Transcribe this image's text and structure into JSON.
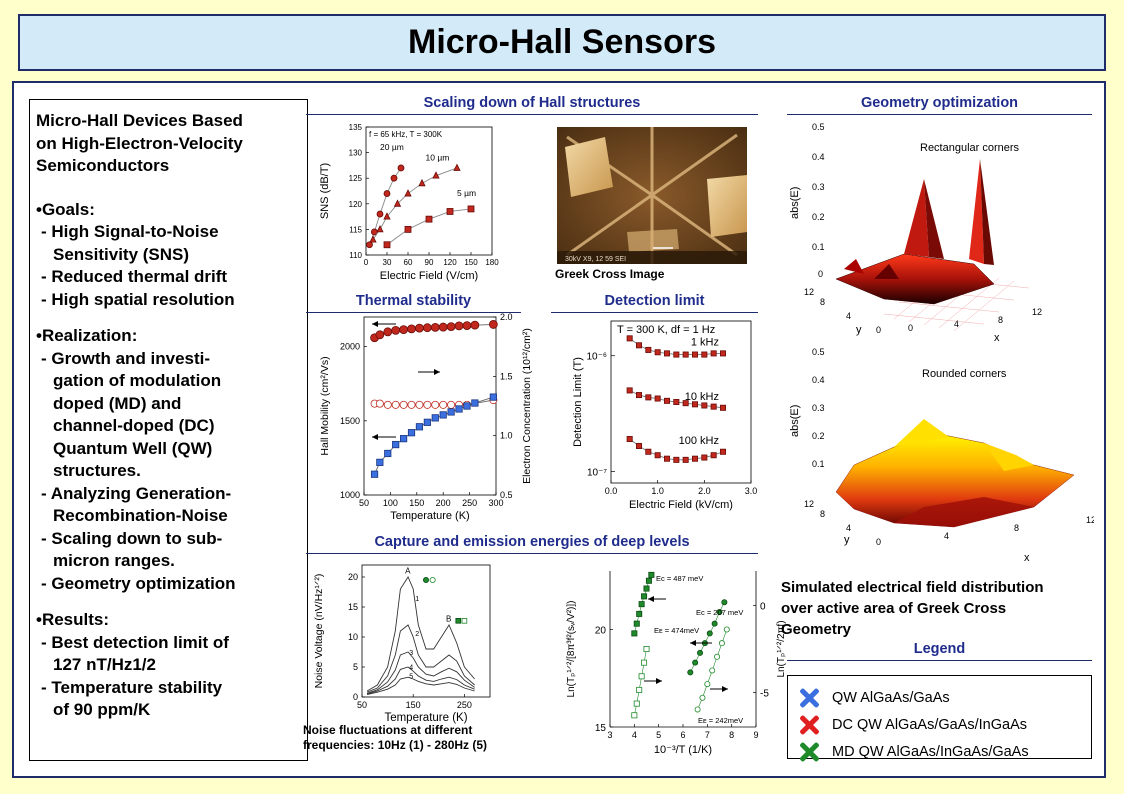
{
  "title": "Micro-Hall Sensors",
  "left": {
    "heading": [
      "Micro-Hall Devices Based",
      "on High-Electron-Velocity",
      "Semiconductors"
    ],
    "goals_title": "•Goals:",
    "goals": [
      [
        "- High Signal-to-Noise",
        "Sensitivity (SNS)"
      ],
      [
        "- Reduced thermal drift"
      ],
      [
        "- High spatial resolution"
      ]
    ],
    "realization_title": "•Realization:",
    "realization": [
      [
        "- Growth and investi-",
        "gation of modulation",
        "doped (MD) and",
        "channel-doped (DC)",
        "Quantum Well (QW)",
        "structures."
      ],
      [
        "- Analyzing Generation-",
        "Recombination-Noise"
      ],
      [
        "- Scaling down to sub-",
        "micron ranges."
      ],
      [
        "- Geometry optimization"
      ]
    ],
    "results_title": "•Results:",
    "results": [
      [
        "- Best detection limit of",
        "127 nT/Hz1/2"
      ],
      [
        "- Temperature stability",
        "of 90 ppm/K"
      ]
    ]
  },
  "sections": {
    "scaling": "Scaling down of Hall structures",
    "thermal": "Thermal stability",
    "detection": "Detection limit",
    "capture": "Capture and emission energies of deep levels",
    "geometry": "Geometry optimization",
    "legend": "Legend"
  },
  "captions": {
    "greek_cross": "Greek Cross Image",
    "noise": [
      "Noise fluctuations at different",
      "frequencies: 10Hz (1) - 280Hz (5)"
    ],
    "simulated": [
      "Simulated electrical field distribution",
      "over active area of Greek Cross",
      "Geometry"
    ]
  },
  "sem_image_text": "30kV  X9,   12 59 SEI",
  "legend": [
    {
      "label": "QW AlGaAs/GaAs",
      "color": "#3b6fe0"
    },
    {
      "label": "DC QW AlGaAs/GaAs/InGaAs",
      "color": "#e02020"
    },
    {
      "label": "MD QW AlGaAs/InGaAs/GaAs",
      "color": "#1e8a2a"
    }
  ],
  "chart_data": [
    {
      "type": "scatter",
      "name": "sns",
      "title": "f = 65 kHz, T = 300K",
      "xlabel": "Electric Field (V/cm)",
      "ylabel": "SNS (dB/T)",
      "xlim": [
        0,
        180
      ],
      "ylim": [
        110,
        135
      ],
      "xticks": [
        "0",
        "30",
        "60",
        "90",
        "120",
        "150",
        "180"
      ],
      "yticks": [
        "110",
        "115",
        "120",
        "125",
        "130",
        "135"
      ],
      "series": [
        {
          "name": "20 µm",
          "marker": "circle",
          "x": [
            5,
            12,
            20,
            30,
            40,
            50
          ],
          "y": [
            112,
            114.5,
            118,
            122,
            125,
            127
          ]
        },
        {
          "name": "10 µm",
          "marker": "triangle",
          "x": [
            10,
            20,
            30,
            45,
            60,
            80,
            100,
            130
          ],
          "y": [
            113,
            115,
            117.5,
            120,
            122,
            124,
            125.5,
            127
          ]
        },
        {
          "name": "5 µm",
          "marker": "square",
          "x": [
            30,
            60,
            90,
            120,
            150
          ],
          "y": [
            112,
            115,
            117,
            118.5,
            119
          ]
        }
      ]
    },
    {
      "type": "scatter",
      "name": "thermal",
      "xlabel": "Temperature (K)",
      "ylabel": "Hall Mobility (cm²/Vs)",
      "y2label": "Electron Concentration (10¹²/cm²)",
      "xlim": [
        50,
        300
      ],
      "ylim": [
        1000,
        2200
      ],
      "y2lim": [
        0.5,
        2.0
      ],
      "xticks": [
        "50",
        "100",
        "150",
        "200",
        "250",
        "300"
      ],
      "yticks": [
        "1000",
        "1500",
        "2000"
      ],
      "y2ticks": [
        "0.5",
        "1.0",
        "1.5",
        "2.0"
      ],
      "series": [
        {
          "name": "mobility_red",
          "x": [
            70,
            80,
            95,
            110,
            125,
            140,
            155,
            170,
            185,
            200,
            215,
            230,
            245,
            260,
            295
          ],
          "y": [
            2060,
            2080,
            2100,
            2110,
            2115,
            2120,
            2125,
            2128,
            2130,
            2132,
            2135,
            2140,
            2142,
            2145,
            2150
          ]
        },
        {
          "name": "concentration_open",
          "x": [
            70,
            80,
            95,
            110,
            125,
            140,
            155,
            170,
            185,
            200,
            215,
            230,
            245,
            295
          ],
          "y2": [
            1.27,
            1.27,
            1.26,
            1.26,
            1.26,
            1.26,
            1.26,
            1.26,
            1.26,
            1.26,
            1.26,
            1.26,
            1.26,
            1.3
          ]
        },
        {
          "name": "mobility_blue",
          "x": [
            70,
            80,
            95,
            110,
            125,
            140,
            155,
            170,
            185,
            200,
            215,
            230,
            245,
            260,
            295
          ],
          "y": [
            1140,
            1220,
            1280,
            1340,
            1380,
            1420,
            1460,
            1490,
            1520,
            1540,
            1560,
            1580,
            1600,
            1620,
            1660
          ]
        }
      ]
    },
    {
      "type": "scatter",
      "name": "detection",
      "title": "T = 300 K, df = 1 Hz",
      "xlabel": "Electric Field (kV/cm)",
      "ylabel": "Detection Limit (T)",
      "xlim": [
        0,
        3.0
      ],
      "ylim_log": [
        -7.1,
        -5.7
      ],
      "xticks": [
        "0.0",
        "1.0",
        "2.0",
        "3.0"
      ],
      "yticks": [
        "10⁻⁷",
        "10⁻⁶"
      ],
      "series": [
        {
          "name": "1 kHz",
          "x": [
            0.4,
            0.6,
            0.8,
            1.0,
            1.2,
            1.4,
            1.6,
            1.8,
            2.0,
            2.2,
            2.4
          ],
          "logy": [
            -5.85,
            -5.91,
            -5.95,
            -5.97,
            -5.98,
            -5.99,
            -5.99,
            -5.99,
            -5.99,
            -5.98,
            -5.98
          ]
        },
        {
          "name": "10 kHz",
          "x": [
            0.4,
            0.6,
            0.8,
            1.0,
            1.2,
            1.4,
            1.6,
            1.8,
            2.0,
            2.2,
            2.4
          ],
          "logy": [
            -6.3,
            -6.34,
            -6.36,
            -6.37,
            -6.39,
            -6.4,
            -6.41,
            -6.42,
            -6.43,
            -6.44,
            -6.45
          ]
        },
        {
          "name": "100 kHz",
          "x": [
            0.4,
            0.6,
            0.8,
            1.0,
            1.2,
            1.4,
            1.6,
            1.8,
            2.0,
            2.2,
            2.4
          ],
          "logy": [
            -6.72,
            -6.78,
            -6.83,
            -6.86,
            -6.89,
            -6.9,
            -6.9,
            -6.89,
            -6.88,
            -6.86,
            -6.83
          ]
        }
      ]
    },
    {
      "type": "line",
      "name": "noise",
      "xlabel": "Temperature (K)",
      "ylabel": "Noise Voltage (nV/Hz¹ᐟ²)",
      "xlim": [
        50,
        300
      ],
      "ylim": [
        0,
        22
      ],
      "xticks": [
        "50",
        "150",
        "250"
      ],
      "yticks": [
        "0",
        "5",
        "10",
        "15",
        "20"
      ],
      "labels": [
        "A",
        "B",
        "1",
        "2",
        "3",
        "4",
        "5"
      ],
      "series": [
        {
          "name": "1",
          "x": [
            60,
            80,
            100,
            115,
            125,
            140,
            150,
            160,
            175,
            190,
            205,
            220,
            235,
            250,
            270
          ],
          "y": [
            1,
            2,
            5,
            11,
            18,
            20,
            18,
            12,
            8,
            8,
            10,
            12,
            9,
            5,
            3
          ]
        },
        {
          "name": "2",
          "x": [
            60,
            80,
            100,
            115,
            125,
            140,
            150,
            160,
            175,
            190,
            205,
            220,
            235,
            250,
            270
          ],
          "y": [
            0.8,
            1.5,
            3.5,
            7,
            11,
            12,
            10,
            7,
            5,
            5,
            6,
            7,
            6,
            3.5,
            2
          ]
        },
        {
          "name": "3",
          "x": [
            60,
            80,
            100,
            115,
            125,
            140,
            150,
            160,
            175,
            190,
            205,
            220,
            235,
            250,
            270
          ],
          "y": [
            0.6,
            1.2,
            2.5,
            4.5,
            7,
            7.5,
            6.5,
            5,
            3.8,
            3.5,
            4.2,
            4.8,
            4.2,
            2.8,
            1.6
          ]
        },
        {
          "name": "4",
          "x": [
            60,
            80,
            100,
            115,
            125,
            140,
            150,
            160,
            175,
            190,
            205,
            220,
            235,
            250,
            270
          ],
          "y": [
            0.5,
            1,
            1.8,
            3,
            4.6,
            5,
            4.3,
            3.5,
            2.8,
            2.6,
            3,
            3.3,
            2.9,
            2,
            1.3
          ]
        },
        {
          "name": "5",
          "x": [
            60,
            80,
            100,
            115,
            125,
            140,
            150,
            160,
            175,
            190,
            205,
            220,
            235,
            250,
            270
          ],
          "y": [
            0.4,
            0.8,
            1.3,
            2,
            3,
            3.3,
            3,
            2.6,
            2.2,
            2,
            2.2,
            2.4,
            2.1,
            1.5,
            1
          ]
        }
      ]
    },
    {
      "type": "scatter",
      "name": "arrhenius",
      "xlabel": "10⁻³/T (1/K)",
      "ylabel": "Ln(Tₚ¹ᐟ²/[8π³f²(sᵥ/V²)])",
      "y2label": "Ln(Tₚ¹ᐟ²/2πf)",
      "xlim": [
        3,
        9
      ],
      "ylim": [
        15,
        23
      ],
      "y2lim": [
        -7,
        2
      ],
      "xticks": [
        "3",
        "4",
        "5",
        "6",
        "7",
        "8",
        "9"
      ],
      "yticks": [
        "15",
        "20"
      ],
      "y2ticks": [
        "-5",
        "0"
      ],
      "annotations": [
        "Eᴄ = 487 meV",
        "Eᴄ = 207 meV",
        "Eᴇ = 474meV",
        "Eᴇ = 242meV"
      ],
      "series": [
        {
          "name": "filled_left",
          "x": [
            4.0,
            4.1,
            4.2,
            4.3,
            4.4,
            4.5,
            4.6,
            4.7
          ],
          "y": [
            19.8,
            20.3,
            20.8,
            21.3,
            21.7,
            22.1,
            22.5,
            22.8
          ]
        },
        {
          "name": "open_left",
          "x": [
            4.0,
            4.1,
            4.2,
            4.3,
            4.4,
            4.5
          ],
          "y": [
            15.6,
            16.2,
            16.9,
            17.6,
            18.3,
            19.0
          ]
        },
        {
          "name": "filled_right",
          "x": [
            6.3,
            6.5,
            6.7,
            6.9,
            7.1,
            7.3,
            7.5,
            7.7
          ],
          "y": [
            17.8,
            18.3,
            18.8,
            19.3,
            19.8,
            20.3,
            20.9,
            21.4
          ]
        },
        {
          "name": "open_right",
          "x": [
            6.6,
            6.8,
            7.0,
            7.2,
            7.4,
            7.6,
            7.8
          ],
          "y": [
            15.9,
            16.5,
            17.2,
            17.9,
            18.6,
            19.3,
            20.0
          ]
        }
      ]
    }
  ]
}
